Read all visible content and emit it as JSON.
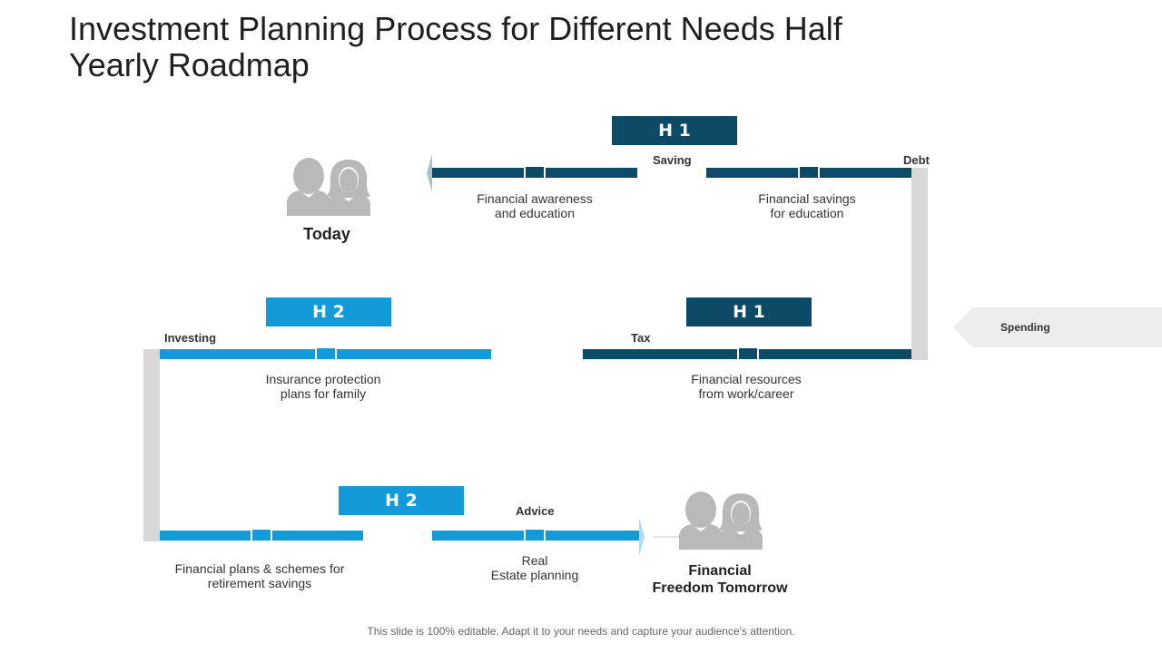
{
  "title": "Investment Planning Process for Different Needs Half Yearly Roadmap",
  "colors": {
    "dark": "#0d4a66",
    "light": "#129bd8",
    "connector": "#d8d8d8",
    "icon": "#b9b9b9"
  },
  "periods": {
    "top": "H 1",
    "mid_left": "H 2",
    "mid_right": "H 1",
    "bottom": "H 2"
  },
  "labels": {
    "saving": "Saving",
    "debt": "Debt",
    "investing": "Investing",
    "tax": "Tax",
    "advice": "Advice",
    "spending": "Spending"
  },
  "steps": {
    "awareness": "Financial awareness\nand education",
    "savings_education": "Financial savings\nfor education",
    "insurance": "Insurance protection\nplans for family",
    "resources": "Financial resources\nfrom work/career",
    "retirement": "Financial plans & schemes for\nretirement savings",
    "real_estate": "Real\nEstate planning"
  },
  "start_label": "Today",
  "end_label": "Financial\nFreedom Tomorrow",
  "icons": {
    "start": "people-icon",
    "end": "people-icon",
    "spending": "arrow-left-icon"
  },
  "footer": "This slide is 100% editable. Adapt it to your needs and capture your audience's attention."
}
